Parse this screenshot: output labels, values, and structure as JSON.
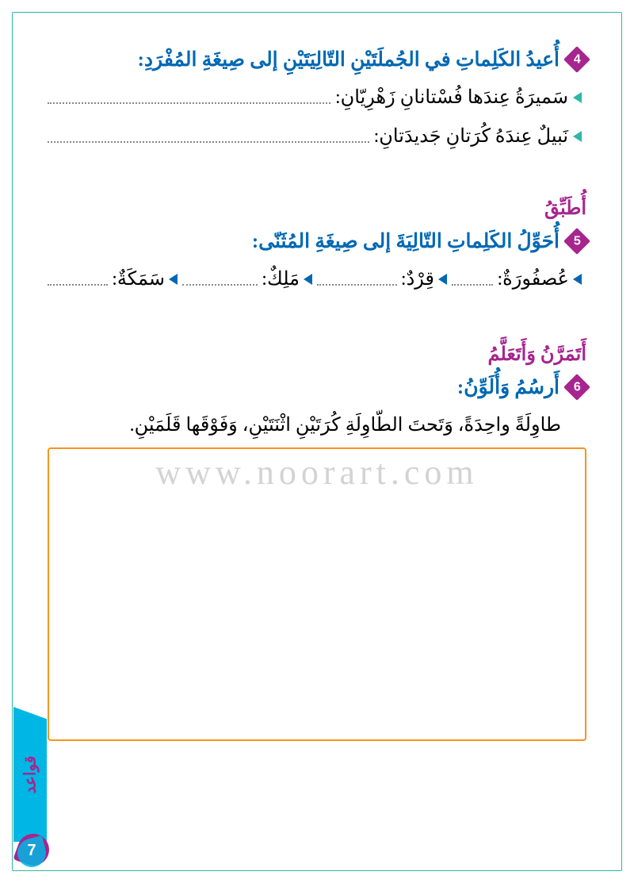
{
  "exercise4": {
    "number": "4",
    "instruction": "أُعيدُ الكَلِماتِ في الجُملَتَيْنِ التّالِيَتَيْنِ إلى صِيغَةِ المُفْرَدِ:",
    "lines": [
      "سَميرَةُ عِندَها فُسْتانانِ زَهْرِيّانِ:",
      "نَبيلٌ عِندَهُ كُرَتانِ جَديدَتانِ:"
    ]
  },
  "section_apply": "أُطَبِّقُ",
  "exercise5": {
    "number": "5",
    "instruction": "أُحَوِّلُ الكَلِماتِ التّالِيَةَ إلى صِيغَةِ المُثَنّى:",
    "words": [
      "عُصفُورَةٌ:",
      "قِرْدٌ:",
      "مَلِكٌ:",
      "سَمَكَةٌ:"
    ]
  },
  "section_practice": "أَتَمَرَّنُ وَأَتَعَلَّمُ",
  "exercise6": {
    "number": "6",
    "instruction": "أَرسُمُ وَأُلَوِّنُ:",
    "description": "طاوِلَةً واحِدَةً، وَتَحتَ الطّاوِلَةِ كُرَتَيْنِ اثْنَتَيْنِ، وَفَوْقَها قَلَمَيْنِ."
  },
  "side_tab": "قواعد",
  "page_number": "7",
  "watermark": "www.noorart.com",
  "colors": {
    "border": "#2db8a8",
    "instruction": "#0068b3",
    "purple": "#a6258e",
    "orange": "#f7941e",
    "cyan": "#00b6e4"
  }
}
